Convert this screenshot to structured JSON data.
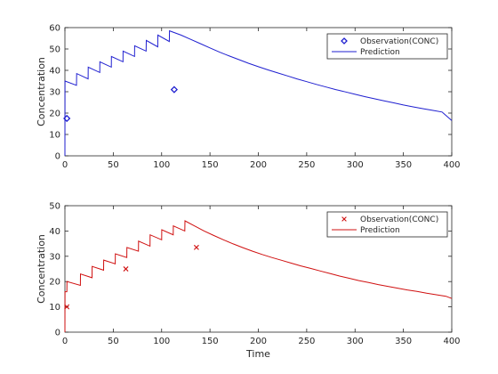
{
  "figure": {
    "xlabel": "Time"
  },
  "chart_data": [
    {
      "type": "line",
      "ylabel": "Concentration",
      "xlim": [
        0,
        400
      ],
      "ylim": [
        0,
        60
      ],
      "xticks": [
        0,
        50,
        100,
        150,
        200,
        250,
        300,
        350,
        400
      ],
      "yticks": [
        0,
        10,
        20,
        30,
        40,
        50,
        60
      ],
      "legend_position": "top-right",
      "color": "#1f1fd0",
      "observations": {
        "name": "Observation(CONC)",
        "marker": "diamond",
        "x": [
          2,
          113
        ],
        "y": [
          17.5,
          31
        ]
      },
      "prediction": {
        "name": "Prediction",
        "x": [
          0,
          0.1,
          12,
          12.1,
          24,
          24.1,
          36,
          36.1,
          48,
          48.1,
          60,
          60.1,
          72,
          72.1,
          84,
          84.1,
          96,
          96.1,
          108,
          108.1,
          120,
          130,
          140,
          150,
          160,
          170,
          180,
          190,
          200,
          210,
          220,
          230,
          240,
          250,
          260,
          270,
          280,
          290,
          300,
          310,
          320,
          330,
          340,
          350,
          360,
          370,
          380,
          390,
          400
        ],
        "y": [
          0,
          35,
          33,
          38.5,
          36,
          41.5,
          39,
          44,
          41.5,
          46.5,
          44,
          49,
          46.5,
          51.5,
          49,
          54,
          51,
          56.5,
          53.5,
          58.5,
          56.5,
          54.5,
          52.5,
          50.5,
          48.5,
          46.7,
          45,
          43.3,
          41.7,
          40.2,
          38.8,
          37.4,
          36,
          34.7,
          33.4,
          32.2,
          31,
          29.9,
          28.8,
          27.7,
          26.7,
          25.7,
          24.8,
          23.8,
          22.9,
          22.1,
          21.3,
          20.5,
          16.5
        ]
      }
    },
    {
      "type": "line",
      "ylabel": "Concentration",
      "xlabel": "Time",
      "xlim": [
        0,
        400
      ],
      "ylim": [
        0,
        50
      ],
      "xticks": [
        0,
        50,
        100,
        150,
        200,
        250,
        300,
        350,
        400
      ],
      "yticks": [
        0,
        10,
        20,
        30,
        40,
        50
      ],
      "legend_position": "top-right",
      "color": "#d01010",
      "observations": {
        "name": "Observation(CONC)",
        "marker": "x",
        "x": [
          2,
          63,
          136
        ],
        "y": [
          10,
          25,
          33.5
        ]
      },
      "prediction": {
        "name": "Prediction",
        "x": [
          0,
          0.1,
          2,
          2.1,
          16,
          16.1,
          28,
          28.1,
          40,
          40.1,
          52,
          52.1,
          64,
          64.1,
          76,
          76.1,
          88,
          88.1,
          100,
          100.1,
          112,
          112.1,
          124,
          124.1,
          134,
          144,
          154,
          164,
          174,
          184,
          194,
          204,
          214,
          224,
          234,
          244,
          254,
          264,
          274,
          284,
          294,
          304,
          314,
          324,
          334,
          344,
          354,
          364,
          374,
          384,
          394,
          400
        ],
        "y": [
          0,
          16,
          16,
          20,
          18.5,
          23,
          21.5,
          26,
          24.5,
          28.5,
          27,
          31,
          29.5,
          33.5,
          32,
          36,
          34,
          38.5,
          36.5,
          40.5,
          38.5,
          42,
          40,
          44,
          42,
          40,
          38.2,
          36.5,
          34.9,
          33.4,
          32,
          30.7,
          29.5,
          28.4,
          27.3,
          26.2,
          25.2,
          24.2,
          23.2,
          22.2,
          21.3,
          20.4,
          19.6,
          18.8,
          18.1,
          17.4,
          16.7,
          16.1,
          15.4,
          14.8,
          14.2,
          13.3
        ]
      }
    }
  ]
}
